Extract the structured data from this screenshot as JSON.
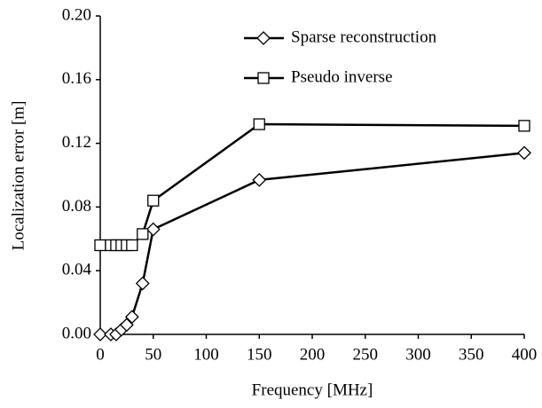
{
  "chart_data": {
    "type": "line",
    "xlabel": "Frequency [MHz]",
    "ylabel": "Localization error [m]",
    "xlim": [
      0,
      400
    ],
    "xticks": [
      0,
      50,
      100,
      150,
      200,
      250,
      300,
      350,
      400
    ],
    "ylim": [
      0,
      0.2
    ],
    "yticks": [
      {
        "value": 0,
        "label": "0.00"
      },
      0.04,
      0.08,
      0.12,
      0.16,
      {
        "value": 0.2,
        "label": "0.20"
      }
    ],
    "legend": "top-center",
    "series": [
      {
        "name": "Sparse reconstruction",
        "color": "#000000",
        "marker": "diamond",
        "x": [
          0,
          10,
          15,
          20,
          25,
          30,
          40,
          50,
          150,
          400
        ],
        "values": [
          0,
          0,
          0,
          0.003,
          0.006,
          0.011,
          0.032,
          0.066,
          0.097,
          0.114
        ]
      },
      {
        "name": "Pseudo inverse",
        "color": "#000000",
        "marker": "square",
        "x": [
          0,
          10,
          15,
          20,
          25,
          30,
          40,
          50,
          150,
          400
        ],
        "values": [
          0.056,
          0.056,
          0.056,
          0.056,
          0.056,
          0.056,
          0.063,
          0.084,
          0.132,
          0.131
        ]
      }
    ]
  }
}
